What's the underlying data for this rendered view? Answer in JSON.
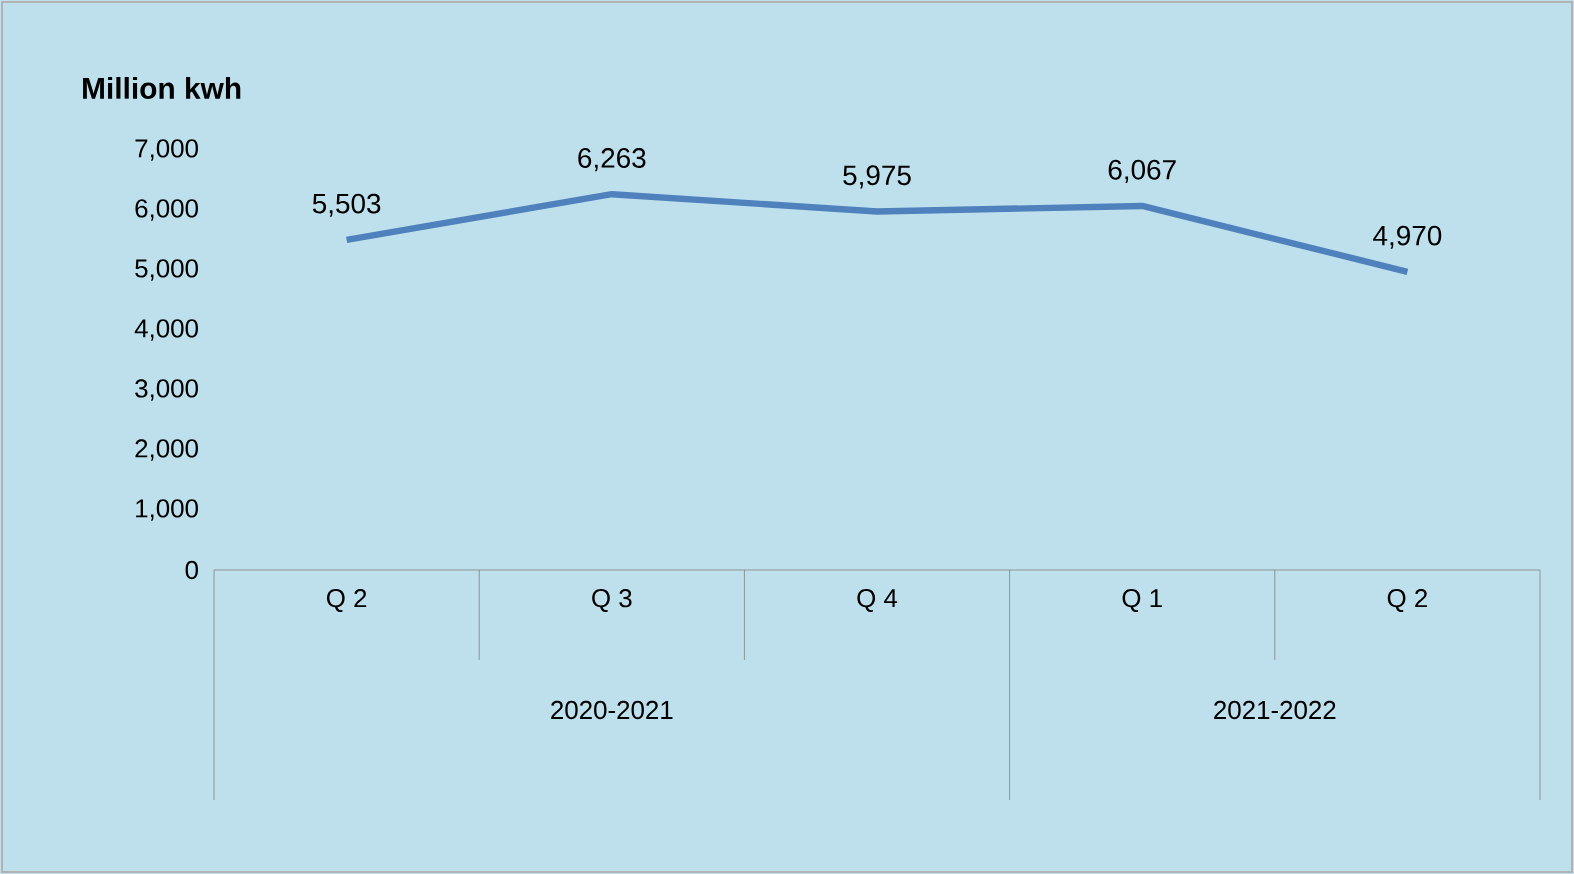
{
  "chart_data": {
    "type": "line",
    "ylabel": "Million kwh",
    "categories": [
      "Q 2",
      "Q 3",
      "Q 4",
      "Q 1",
      "Q 2"
    ],
    "values": [
      5503,
      6263,
      5975,
      6067,
      4970
    ],
    "value_labels": [
      "5,503",
      "6,263",
      "5,975",
      "6,067",
      "4,970"
    ],
    "color": "#4f81bd",
    "marker": "none",
    "line_style": "solid",
    "ylim": [
      0,
      7000
    ],
    "yticks": [
      {
        "value": 0,
        "label": "0"
      },
      {
        "value": 1000,
        "label": "1,000"
      },
      {
        "value": 2000,
        "label": "2,000"
      },
      {
        "value": 3000,
        "label": "3,000"
      },
      {
        "value": 4000,
        "label": "4,000"
      },
      {
        "value": 5000,
        "label": "5,000"
      },
      {
        "value": 6000,
        "label": "6,000"
      },
      {
        "value": 7000,
        "label": "7,000"
      }
    ],
    "annotations": [
      "2020-2021",
      "2021-2022"
    ]
  }
}
